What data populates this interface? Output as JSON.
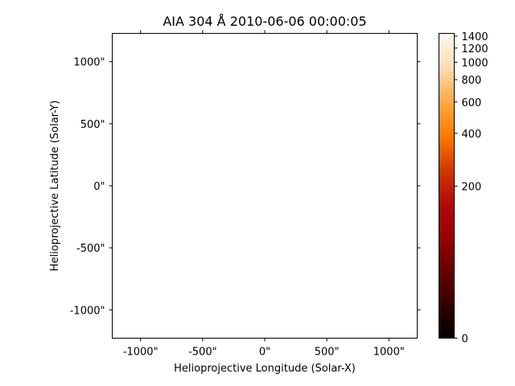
{
  "chart_data": [
    {
      "type": "heatmap",
      "title": "AIA 304 Å 2010-06-06 00:00:05",
      "xlabel": "Helioprojective Longitude (Solar-X)",
      "ylabel": "Helioprojective Latitude (Solar-Y)",
      "xlim": [
        -1228,
        1228
      ],
      "ylim": [
        -1228,
        1228
      ],
      "x_unit": "arcsec",
      "y_unit": "arcsec",
      "x_ticks": [
        {
          "value": -1000,
          "label": "-1000\""
        },
        {
          "value": -500,
          "label": "-500\""
        },
        {
          "value": 0,
          "label": "0\""
        },
        {
          "value": 500,
          "label": "500\""
        },
        {
          "value": 1000,
          "label": "1000\""
        }
      ],
      "y_ticks": [
        {
          "value": 1000,
          "label": "1000\""
        },
        {
          "value": 500,
          "label": "500\""
        },
        {
          "value": 0,
          "label": "0\""
        },
        {
          "value": -500,
          "label": "-500\""
        },
        {
          "value": -1000,
          "label": "-1000\""
        }
      ],
      "image_content": "blank",
      "grid": false
    },
    {
      "type": "colorbar",
      "colormap": [
        "#000000",
        "#330000",
        "#660000",
        "#990000",
        "#b30a0a",
        "#d13b00",
        "#ff7b00",
        "#ffa945",
        "#ffdcb3",
        "#fff7f0"
      ],
      "scale": "asinh",
      "range": [
        0,
        1450
      ],
      "ticks": [
        {
          "value": 0,
          "label": "0"
        },
        {
          "value": 200,
          "label": "200"
        },
        {
          "value": 400,
          "label": "400"
        },
        {
          "value": 600,
          "label": "600"
        },
        {
          "value": 800,
          "label": "800"
        },
        {
          "value": 1000,
          "label": "1000"
        },
        {
          "value": 1200,
          "label": "1200"
        },
        {
          "value": 1400,
          "label": "1400"
        }
      ]
    }
  ]
}
